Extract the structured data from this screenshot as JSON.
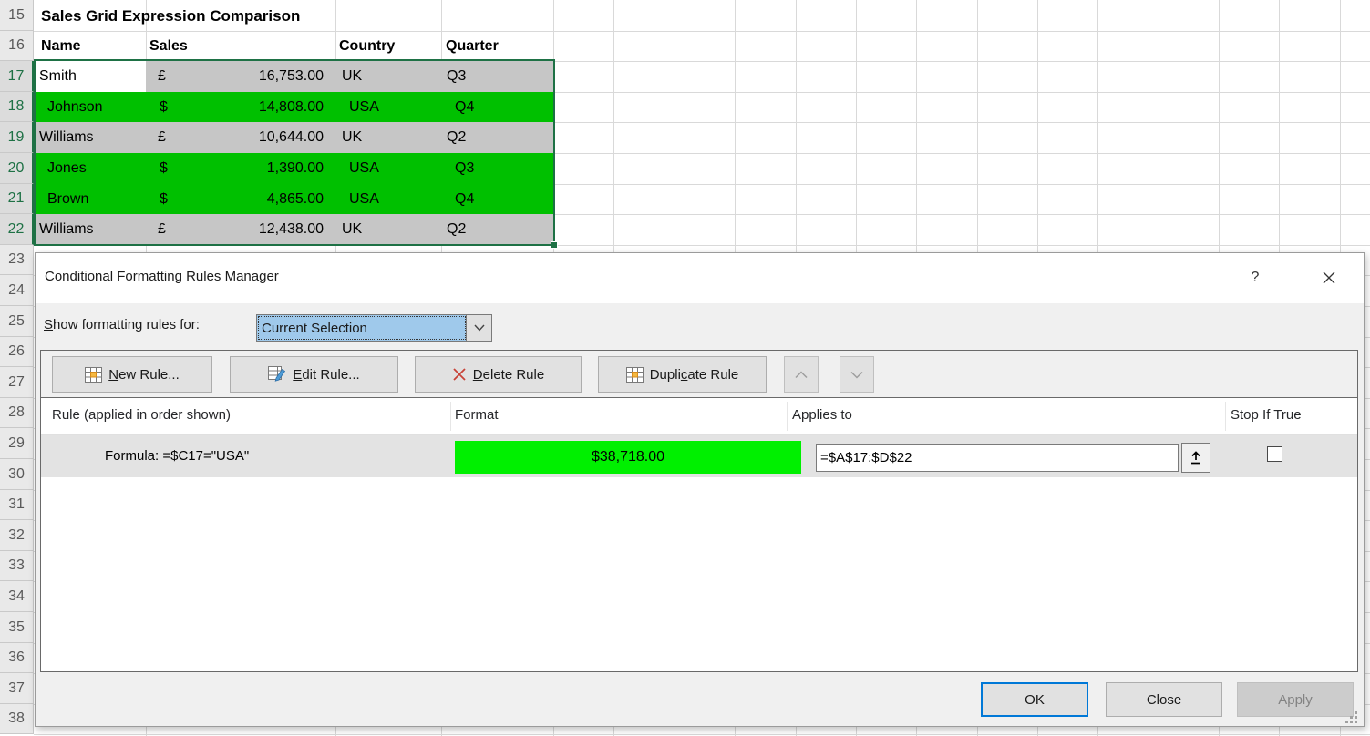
{
  "sheet": {
    "title": "Sales Grid Expression Comparison",
    "headers": [
      "Name",
      "Sales",
      "Country",
      "Quarter"
    ],
    "rows": [
      {
        "number": "17",
        "name": "Smith",
        "currency": "£",
        "amount": "16,753.00",
        "country": "UK",
        "quarter": "Q3",
        "fill": "gray",
        "active": true
      },
      {
        "number": "18",
        "name": "Johnson",
        "currency": "$",
        "amount": "14,808.00",
        "country": "USA",
        "quarter": "Q4",
        "fill": "green",
        "active": false
      },
      {
        "number": "19",
        "name": "Williams",
        "currency": "£",
        "amount": "10,644.00",
        "country": "UK",
        "quarter": "Q2",
        "fill": "gray",
        "active": false
      },
      {
        "number": "20",
        "name": "Jones",
        "currency": "$",
        "amount": "1,390.00",
        "country": "USA",
        "quarter": "Q3",
        "fill": "green",
        "active": false
      },
      {
        "number": "21",
        "name": "Brown",
        "currency": "$",
        "amount": "4,865.00",
        "country": "USA",
        "quarter": "Q4",
        "fill": "green",
        "active": false
      },
      {
        "number": "22",
        "name": "Williams",
        "currency": "£",
        "amount": "12,438.00",
        "country": "UK",
        "quarter": "Q2",
        "fill": "gray",
        "active": false
      }
    ],
    "row_numbers": [
      "15",
      "16",
      "17",
      "18",
      "19",
      "20",
      "21",
      "22",
      "23",
      "24",
      "25",
      "26",
      "27",
      "28",
      "29",
      "30",
      "31",
      "32",
      "33",
      "34",
      "35",
      "36",
      "37",
      "38"
    ],
    "selected_row_numbers": [
      "17",
      "18",
      "19",
      "20",
      "21",
      "22"
    ],
    "colors": {
      "green_fill": "#00C000",
      "selection_gray": "#C6C6C6",
      "active_cell": "#FFFFFF",
      "selection_border": "#1E7145",
      "preview_green": "#00F000"
    }
  },
  "dialog": {
    "title": "Conditional Formatting Rules Manager",
    "help_glyph": "?",
    "show_rules": {
      "label": "Show formatting rules for:",
      "accel": "S",
      "value": "Current Selection"
    },
    "toolbar": {
      "new_rule": {
        "label": "New Rule...",
        "accel": "N"
      },
      "edit_rule": {
        "label": "Edit Rule...",
        "accel": "E"
      },
      "delete_rule": {
        "label": "Delete Rule",
        "accel": "D"
      },
      "duplicate_rule": {
        "label": "Duplicate Rule",
        "accel": "c"
      }
    },
    "table_headers": [
      "Rule (applied in order shown)",
      "Format",
      "Applies to",
      "Stop If True"
    ],
    "rules": [
      {
        "rule": "Formula: =$C17=\"USA\"",
        "format_preview": "$38,718.00",
        "applies_to": "=$A$17:$D$22",
        "stop_if_true": false
      }
    ],
    "buttons": {
      "ok": "OK",
      "close": "Close",
      "apply": "Apply"
    },
    "accent_blue": "#0078D7"
  }
}
